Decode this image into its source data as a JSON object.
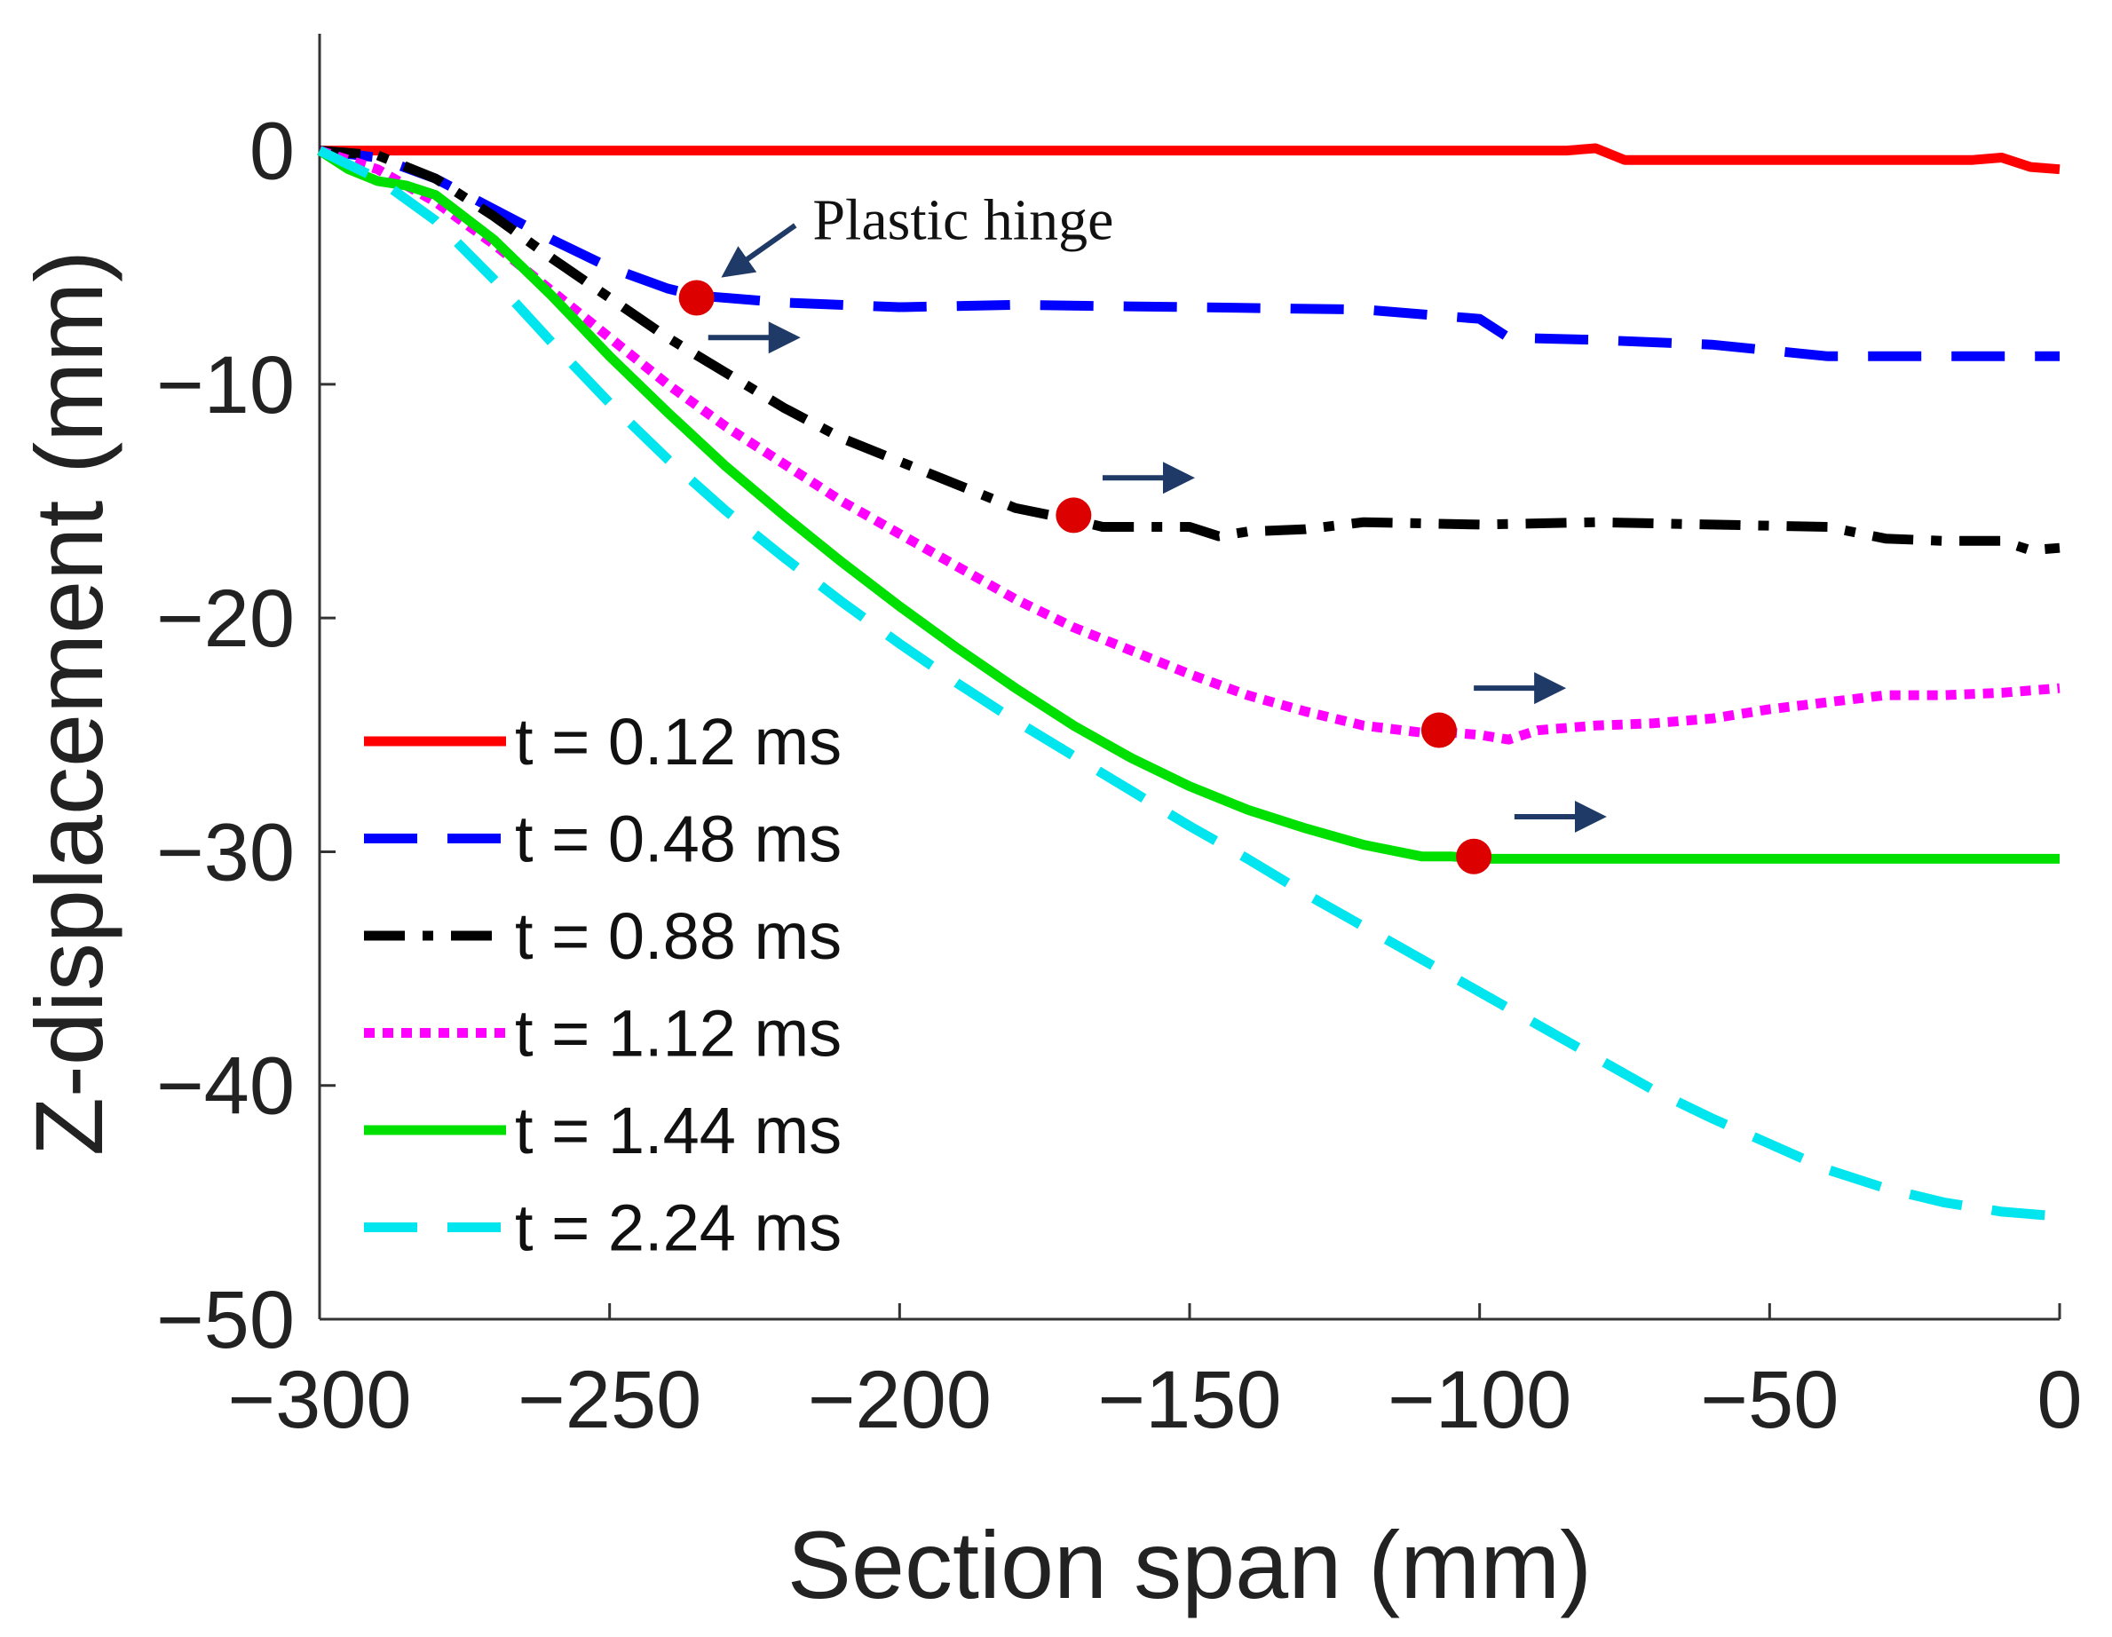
{
  "chart_data": {
    "type": "line",
    "xlabel": "Section span (mm)",
    "ylabel": "Z-displacement (mm)",
    "xlim": [
      -300,
      0
    ],
    "ylim": [
      -50,
      5
    ],
    "xticks": [
      -300,
      -250,
      -200,
      -150,
      -100,
      -50,
      0
    ],
    "yticks": [
      -50,
      -40,
      -30,
      -20,
      -10,
      0
    ],
    "xtick_labels": [
      "−300",
      "−250",
      "−200",
      "−150",
      "−100",
      "−50",
      "0"
    ],
    "ytick_labels": [
      "−50",
      "−40",
      "−30",
      "−20",
      "−10",
      "0"
    ],
    "grid": false,
    "legend_position": "bottom-left",
    "series": [
      {
        "name": "t = 0.12 ms",
        "color": "#ff0000",
        "style": "solid",
        "x": [
          -300,
          -250,
          -200,
          -150,
          -100,
          -85,
          -80,
          -75,
          -50,
          -30,
          -15,
          -10,
          -5,
          0
        ],
        "y": [
          0,
          0,
          0,
          0,
          0,
          0,
          0.1,
          -0.4,
          -0.4,
          -0.4,
          -0.4,
          -0.3,
          -0.7,
          -0.8
        ]
      },
      {
        "name": "t = 0.48 ms",
        "color": "#0000ff",
        "style": "dashed",
        "x": [
          -300,
          -290,
          -280,
          -270,
          -260,
          -250,
          -240,
          -235,
          -230,
          -220,
          -200,
          -180,
          -150,
          -120,
          -105,
          -100,
          -95,
          -80,
          -60,
          -40,
          -20,
          0
        ],
        "y": [
          0,
          -0.3,
          -1.2,
          -2.5,
          -3.8,
          -5,
          -5.9,
          -6.2,
          -6.3,
          -6.5,
          -6.7,
          -6.6,
          -6.7,
          -6.8,
          -7.1,
          -7.2,
          -8,
          -8.1,
          -8.3,
          -8.8,
          -8.8,
          -8.8
        ]
      },
      {
        "name": "t = 0.88 ms",
        "color": "#000000",
        "style": "dashdot",
        "x": [
          -300,
          -290,
          -280,
          -270,
          -260,
          -250,
          -240,
          -230,
          -220,
          -210,
          -200,
          -190,
          -180,
          -170,
          -165,
          -160,
          -150,
          -145,
          -140,
          -130,
          -120,
          -100,
          -80,
          -60,
          -40,
          -30,
          -20,
          -10,
          -5,
          0
        ],
        "y": [
          0,
          -0.2,
          -1.2,
          -2.8,
          -4.6,
          -6.3,
          -8,
          -9.5,
          -11,
          -12.3,
          -13.3,
          -14.3,
          -15.3,
          -15.8,
          -16.1,
          -16.1,
          -16.1,
          -16.5,
          -16.3,
          -16.2,
          -15.9,
          -16,
          -15.9,
          -16,
          -16.1,
          -16.6,
          -16.7,
          -16.7,
          -17.1,
          -17
        ]
      },
      {
        "name": "t = 1.12 ms",
        "color": "#ff00ff",
        "style": "dotted",
        "x": [
          -300,
          -290,
          -280,
          -270,
          -260,
          -250,
          -240,
          -230,
          -220,
          -210,
          -200,
          -190,
          -180,
          -170,
          -160,
          -150,
          -140,
          -130,
          -120,
          -110,
          -105,
          -100,
          -95,
          -90,
          -80,
          -70,
          -60,
          -50,
          -40,
          -30,
          -20,
          -10,
          0
        ],
        "y": [
          0,
          -0.8,
          -2.2,
          -4,
          -6,
          -8,
          -10,
          -11.8,
          -13.4,
          -15,
          -16.4,
          -17.8,
          -19.2,
          -20.4,
          -21.4,
          -22.4,
          -23.3,
          -24,
          -24.6,
          -24.9,
          -24.9,
          -25,
          -25.2,
          -24.8,
          -24.6,
          -24.5,
          -24.3,
          -23.9,
          -23.6,
          -23.3,
          -23.3,
          -23.2,
          -23
        ]
      },
      {
        "name": "t = 1.44 ms",
        "color": "#00e000",
        "style": "solid",
        "x": [
          -300,
          -295,
          -290,
          -285,
          -280,
          -270,
          -260,
          -250,
          -240,
          -230,
          -220,
          -210,
          -200,
          -190,
          -180,
          -170,
          -160,
          -150,
          -140,
          -130,
          -120,
          -110,
          -105,
          -100,
          -80,
          -50,
          -20,
          0
        ],
        "y": [
          0,
          -0.8,
          -1.3,
          -1.5,
          -1.9,
          -3.8,
          -6.2,
          -8.8,
          -11.2,
          -13.5,
          -15.6,
          -17.6,
          -19.5,
          -21.3,
          -23,
          -24.6,
          -26,
          -27.2,
          -28.2,
          -29,
          -29.7,
          -30.2,
          -30.2,
          -30.3,
          -30.3,
          -30.3,
          -30.3,
          -30.3
        ]
      },
      {
        "name": "t = 2.24 ms",
        "color": "#00e5ee",
        "style": "dashed",
        "x": [
          -300,
          -290,
          -280,
          -270,
          -260,
          -250,
          -240,
          -230,
          -220,
          -210,
          -200,
          -190,
          -180,
          -170,
          -160,
          -150,
          -140,
          -130,
          -120,
          -110,
          -100,
          -90,
          -80,
          -70,
          -60,
          -50,
          -40,
          -30,
          -20,
          -10,
          0
        ],
        "y": [
          0,
          -1.2,
          -3,
          -5.5,
          -8.2,
          -10.8,
          -13.2,
          -15.4,
          -17.4,
          -19.3,
          -21.1,
          -22.8,
          -24.4,
          -25.9,
          -27.4,
          -28.9,
          -30.3,
          -31.8,
          -33.2,
          -34.6,
          -36,
          -37.4,
          -38.8,
          -40.2,
          -41.4,
          -42.5,
          -43.6,
          -44.4,
          -45,
          -45.4,
          -45.6
        ]
      }
    ],
    "hinge_points": [
      {
        "x": -235,
        "y": -6.3
      },
      {
        "x": -170,
        "y": -15.6
      },
      {
        "x": -107,
        "y": -24.8
      },
      {
        "x": -101,
        "y": -30.2
      }
    ],
    "hinge_color": "#dd0000",
    "arrow_color": "#1f3a66",
    "arrows": [
      {
        "x1": -233,
        "x2": -218,
        "y": -8
      },
      {
        "x1": -165,
        "x2": -150,
        "y": -14
      },
      {
        "x1": -101,
        "x2": -86,
        "y": -23
      },
      {
        "x1": -94,
        "x2": -79,
        "y": -28.5
      }
    ],
    "annotation": {
      "text": "Plastic hinge",
      "text_x": -215,
      "text_y": -3.8,
      "arrow_from": {
        "x": -218,
        "y": -3.2
      },
      "arrow_to": {
        "x": -230,
        "y": -5.3
      }
    }
  }
}
